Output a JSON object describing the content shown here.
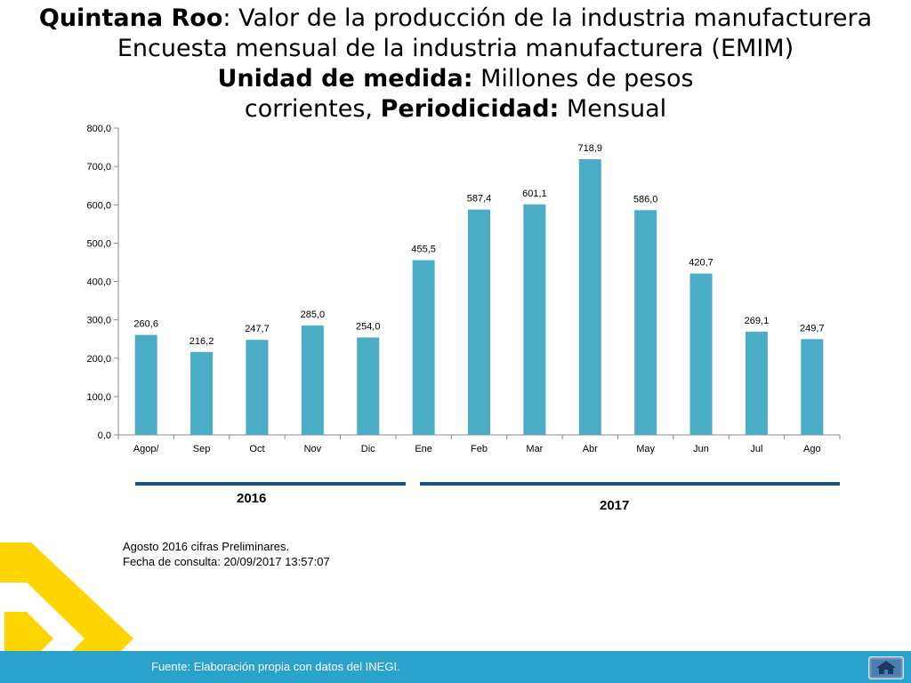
{
  "title": {
    "line1_bold": "Quintana Roo",
    "line1_rest": ": Valor de la producción de la industria manufacturera",
    "line2": "Encuesta mensual de la industria manufacturera (EMIM)",
    "line3_bold": "Unidad de medida:",
    "line3_rest": " Millones de pesos",
    "line4_pre": "corrientes, ",
    "line4_bold": "Periodicidad:",
    "line4_rest": " Mensual"
  },
  "chart_data": {
    "type": "bar",
    "categories": [
      "Agop/",
      "Sep",
      "Oct",
      "Nov",
      "Dic",
      "Ene",
      "Feb",
      "Mar",
      "Abr",
      "May",
      "Jun",
      "Jul",
      "Ago"
    ],
    "values": [
      260.6,
      216.2,
      247.7,
      285.0,
      254.0,
      455.5,
      587.4,
      601.1,
      718.9,
      586.0,
      420.7,
      269.1,
      249.7
    ],
    "data_labels": [
      "260,6",
      "216,2",
      "247,7",
      "285,0",
      "254,0",
      "455,5",
      "587,4",
      "601,1",
      "718,9",
      "586,0",
      "420,7",
      "269,1",
      "249,7"
    ],
    "ylim": [
      0,
      800
    ],
    "yticks": [
      "0,0",
      "100,0",
      "200,0",
      "300,0",
      "400,0",
      "500,0",
      "600,0",
      "700,0",
      "800,0"
    ],
    "bar_color": "#4bacc6",
    "grid": false,
    "legend": "none"
  },
  "years": {
    "year1": "2016",
    "year2": "2017"
  },
  "notes": {
    "line1": "Agosto 2016 cifras Preliminares.",
    "line2": "Fecha de consulta: 20/09/2017 13:57:07"
  },
  "footer": {
    "source": "Fuente: Elaboración propia con datos del INEGI."
  },
  "colors": {
    "footer_bar": "#2aa3cc",
    "year_lines": "#1f4e8c",
    "logo": "#ffd500"
  },
  "icons": {
    "home": "home-icon",
    "logo": "diamond-logo-icon"
  }
}
